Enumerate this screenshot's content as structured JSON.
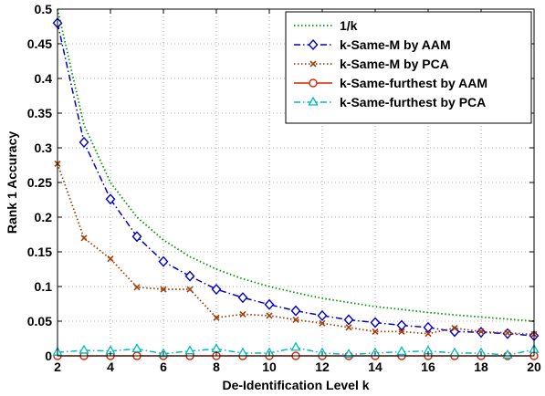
{
  "chart_data": {
    "type": "line",
    "title": "",
    "xlabel": "De-Identification Level k",
    "ylabel": "Rank 1 Accuracy",
    "xlim": [
      2,
      20
    ],
    "ylim": [
      0,
      0.5
    ],
    "xticks": [
      2,
      4,
      6,
      8,
      10,
      12,
      14,
      16,
      18,
      20
    ],
    "yticks": [
      0,
      0.05,
      0.1,
      0.15,
      0.2,
      0.25,
      0.3,
      0.35,
      0.4,
      0.45,
      0.5
    ],
    "xtick_labels": [
      "2",
      "4",
      "6",
      "8",
      "10",
      "12",
      "14",
      "16",
      "18",
      "20"
    ],
    "ytick_labels": [
      "0",
      "0.05",
      "0.1",
      "0.15",
      "0.2",
      "0.25",
      "0.3",
      "0.35",
      "0.4",
      "0.45",
      "0.5"
    ],
    "grid": true,
    "legend_position": "top-right",
    "series": [
      {
        "name": "1/k",
        "color": "#009900",
        "style": "dotted",
        "marker": "none",
        "x": [
          2,
          3,
          4,
          5,
          6,
          7,
          8,
          9,
          10,
          11,
          12,
          13,
          14,
          15,
          16,
          17,
          18,
          19,
          20
        ],
        "y": [
          0.5,
          0.333,
          0.25,
          0.2,
          0.167,
          0.143,
          0.125,
          0.111,
          0.1,
          0.091,
          0.083,
          0.077,
          0.071,
          0.067,
          0.0625,
          0.059,
          0.056,
          0.053,
          0.05
        ]
      },
      {
        "name": "k-Same-M by AAM",
        "color": "#0000cc",
        "style": "dashdot",
        "marker": "diamond",
        "x": [
          2,
          3,
          4,
          5,
          6,
          7,
          8,
          9,
          10,
          11,
          12,
          13,
          14,
          15,
          16,
          17,
          18,
          19,
          20
        ],
        "y": [
          0.48,
          0.308,
          0.226,
          0.172,
          0.136,
          0.115,
          0.096,
          0.084,
          0.074,
          0.065,
          0.058,
          0.052,
          0.048,
          0.044,
          0.041,
          0.035,
          0.034,
          0.032,
          0.029
        ]
      },
      {
        "name": "k-Same-M by PCA",
        "color": "#a0400a",
        "style": "dotted",
        "marker": "x",
        "x": [
          2,
          3,
          4,
          5,
          6,
          7,
          8,
          9,
          10,
          11,
          12,
          13,
          14,
          15,
          16,
          17,
          18,
          19,
          20
        ],
        "y": [
          0.277,
          0.17,
          0.14,
          0.099,
          0.096,
          0.096,
          0.055,
          0.06,
          0.058,
          0.052,
          0.047,
          0.041,
          0.035,
          0.035,
          0.032,
          0.04,
          0.035,
          0.033,
          0.031
        ]
      },
      {
        "name": "k-Same-furthest by AAM",
        "color": "#dd2200",
        "style": "solid",
        "marker": "circle",
        "x": [
          2,
          3,
          4,
          5,
          6,
          7,
          8,
          9,
          10,
          11,
          12,
          13,
          14,
          15,
          16,
          17,
          18,
          19,
          20
        ],
        "y": [
          0,
          0,
          0,
          0,
          0,
          0,
          0,
          0,
          0,
          0,
          0,
          0,
          0,
          0,
          0,
          0,
          0,
          0,
          0
        ]
      },
      {
        "name": "k-Same-furthest by PCA",
        "color": "#00bbbb",
        "style": "dashdot",
        "marker": "triangle",
        "x": [
          2,
          3,
          4,
          5,
          6,
          7,
          8,
          9,
          10,
          11,
          12,
          13,
          14,
          15,
          16,
          17,
          18,
          19,
          20
        ],
        "y": [
          0.005,
          0.008,
          0.007,
          0.01,
          0.003,
          0.007,
          0.01,
          0.004,
          0.004,
          0.012,
          0.004,
          0.002,
          0.004,
          0.006,
          0.007,
          0.004,
          0.004,
          0.001,
          0.009
        ]
      }
    ]
  }
}
